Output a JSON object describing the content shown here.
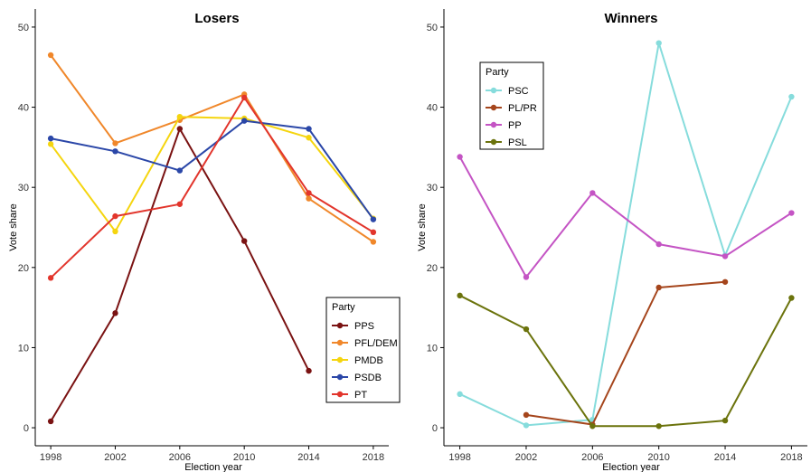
{
  "chart_data": [
    {
      "type": "line",
      "title": "Losers",
      "xlabel": "Election year",
      "ylabel": "Vote share",
      "x": [
        1998,
        2002,
        2006,
        2010,
        2014,
        2018
      ],
      "xlim": [
        1998,
        2018
      ],
      "ylim": [
        0,
        50
      ],
      "yticks": [
        0,
        10,
        20,
        30,
        40,
        50
      ],
      "grid": false,
      "legend": {
        "title": "Party",
        "position": "bottom-right"
      },
      "series": [
        {
          "name": "PPS",
          "color": "#7a1212",
          "values": [
            0.8,
            14.3,
            37.3,
            23.3,
            7.1,
            null
          ]
        },
        {
          "name": "PFL/DEM",
          "color": "#f0872a",
          "values": [
            46.5,
            35.5,
            38.4,
            41.6,
            28.6,
            23.2
          ]
        },
        {
          "name": "PMDB",
          "color": "#f5d50f",
          "values": [
            35.4,
            24.5,
            38.8,
            38.6,
            36.2,
            26.1
          ]
        },
        {
          "name": "PSDB",
          "color": "#2b47a8",
          "values": [
            36.1,
            34.5,
            32.1,
            38.3,
            37.3,
            26.0
          ]
        },
        {
          "name": "PT",
          "color": "#e2352c",
          "values": [
            18.7,
            26.4,
            27.9,
            41.2,
            29.3,
            24.4
          ]
        }
      ]
    },
    {
      "type": "line",
      "title": "Winners",
      "xlabel": "Election year",
      "ylabel": "Vote share",
      "x": [
        1998,
        2002,
        2006,
        2010,
        2014,
        2018
      ],
      "xlim": [
        1998,
        2018
      ],
      "ylim": [
        0,
        50
      ],
      "yticks": [
        0,
        10,
        20,
        30,
        40,
        50
      ],
      "grid": false,
      "legend": {
        "title": "Party",
        "position": "top-left"
      },
      "series": [
        {
          "name": "PSC",
          "color": "#86dcdc",
          "values": [
            4.2,
            0.3,
            1.0,
            48.0,
            21.5,
            41.3
          ]
        },
        {
          "name": "PL/PR",
          "color": "#a5451c",
          "values": [
            null,
            1.6,
            0.4,
            17.5,
            18.2,
            null
          ]
        },
        {
          "name": "PP",
          "color": "#c454c4",
          "values": [
            33.8,
            18.8,
            29.3,
            22.9,
            21.4,
            26.8
          ]
        },
        {
          "name": "PSL",
          "color": "#6b730c",
          "values": [
            16.5,
            12.3,
            0.2,
            0.2,
            0.9,
            16.2
          ]
        }
      ]
    }
  ]
}
